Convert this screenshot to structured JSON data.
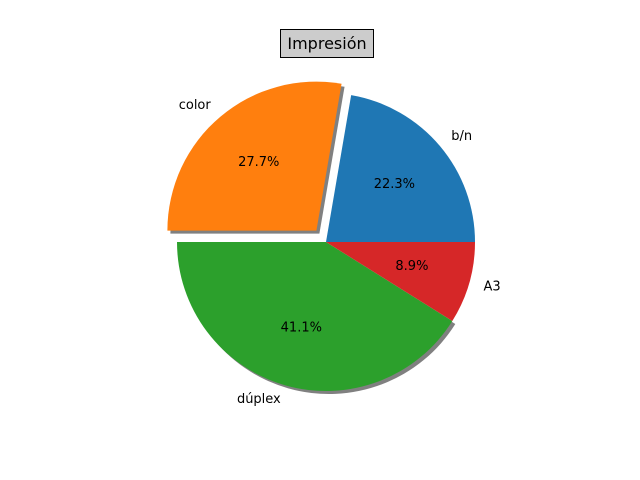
{
  "chart_data": {
    "type": "pie",
    "title": "Impresión",
    "start_angle_deg": 0,
    "counterclockwise": true,
    "slices": [
      {
        "label": "b/n",
        "value": 22.3,
        "pct_label": "22.3%",
        "color": "#1f77b4",
        "explode": 0,
        "shadow": false
      },
      {
        "label": "color",
        "value": 27.7,
        "pct_label": "27.7%",
        "color": "#ff7f0e",
        "explode": 0.1,
        "shadow": true
      },
      {
        "label": "dúplex",
        "value": 41.1,
        "pct_label": "41.1%",
        "color": "#2ca02c",
        "explode": 0,
        "shadow": true
      },
      {
        "label": "A3",
        "value": 8.9,
        "pct_label": "8.9%",
        "color": "#d62728",
        "explode": 0,
        "shadow": false
      }
    ]
  }
}
